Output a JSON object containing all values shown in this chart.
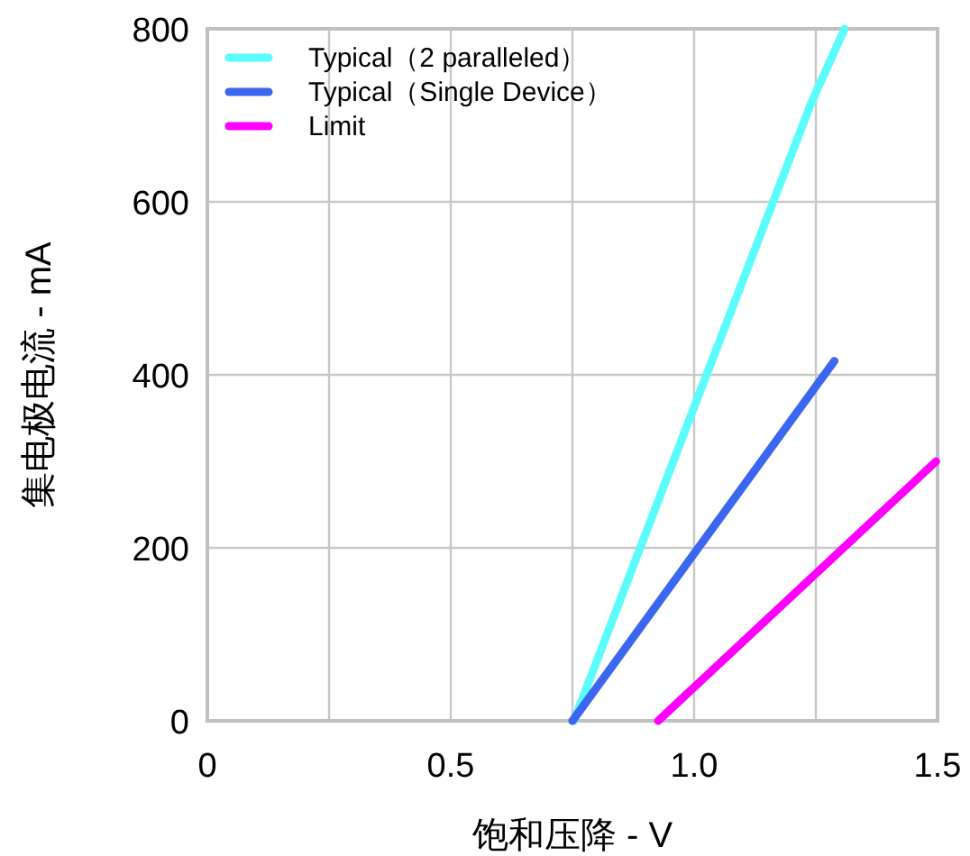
{
  "chart_data": {
    "type": "line",
    "xlabel": "饱和压降 - V",
    "ylabel": "集电极电流 - mA",
    "xlim": [
      0,
      1.5
    ],
    "ylim": [
      0,
      800
    ],
    "xticks": [
      0,
      {
        "value": 0.25,
        "label": null
      },
      0.5,
      {
        "value": 0.75,
        "label": null
      },
      {
        "value": 1.0,
        "label": "1.0"
      },
      {
        "value": 1.25,
        "label": null
      },
      1.5
    ],
    "yticks": [
      0,
      200,
      400,
      600,
      800
    ],
    "grid": true,
    "legend": "top left",
    "marker": "none",
    "line_style": "solid",
    "series": [
      {
        "name": "Typical（2 paralleled）",
        "color": "#5cfcfc",
        "x": [
          0.753,
          0.994,
          1.241,
          1.309
        ],
        "values": [
          0,
          354,
          715,
          800
        ]
      },
      {
        "name": "Typical（Single Device）",
        "color": "#3a66f0",
        "x": [
          0.75,
          1.288
        ],
        "values": [
          0,
          416
        ]
      },
      {
        "name": "Limit",
        "color": "#ff00ff",
        "x": [
          0.926,
          1.497
        ],
        "values": [
          0,
          300
        ]
      }
    ]
  }
}
